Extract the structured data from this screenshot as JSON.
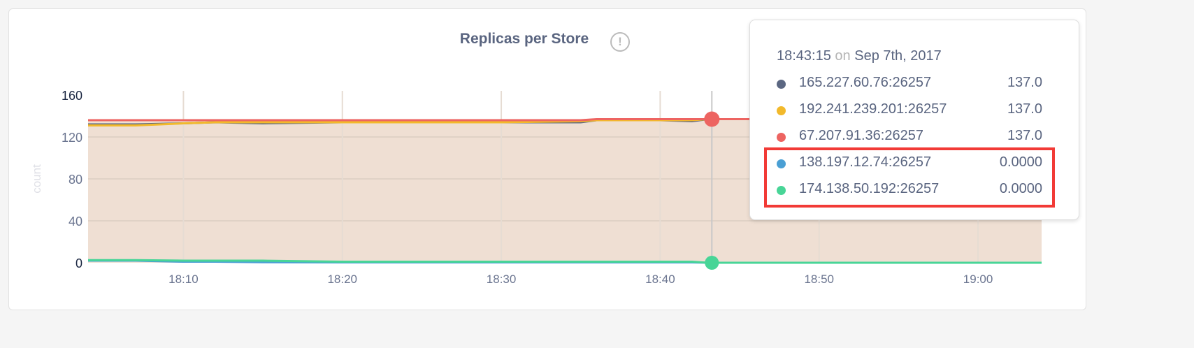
{
  "chart_data": {
    "type": "line",
    "title": "Replicas per Store",
    "ylabel": "count",
    "ylim": [
      0,
      160
    ],
    "yticks": [
      "0",
      "40",
      "80",
      "120",
      "160"
    ],
    "xlim": [
      "18:04",
      "19:04"
    ],
    "xticks": [
      "18:10",
      "18:20",
      "18:30",
      "18:40",
      "18:50",
      "19:00"
    ],
    "grid": true,
    "area_fill": "#efdfd3",
    "x": [
      "18:04",
      "18:07",
      "18:10",
      "18:12",
      "18:15",
      "18:20",
      "18:30",
      "18:35",
      "18:36",
      "18:40",
      "18:42",
      "18:43",
      "18:50",
      "19:00",
      "19:04"
    ],
    "series": [
      {
        "name": "165.227.60.76:26257",
        "color": "#5b6782",
        "values": [
          132,
          132,
          133,
          134,
          133,
          134,
          134,
          134,
          136,
          136,
          135,
          137,
          137,
          137,
          137
        ]
      },
      {
        "name": "192.241.239.201:26257",
        "color": "#f2b92b",
        "values": [
          131,
          131,
          133,
          134,
          134,
          134,
          134,
          135,
          136,
          136,
          136,
          137,
          137,
          137,
          137
        ]
      },
      {
        "name": "67.207.91.36:26257",
        "color": "#ed6461",
        "values": [
          136,
          136,
          136,
          136,
          136,
          136,
          136,
          136,
          137,
          137,
          137,
          137,
          137,
          137,
          137
        ]
      },
      {
        "name": "138.197.12.74:26257",
        "color": "#4a9fd4",
        "values": [
          2,
          2,
          1,
          1,
          0.5,
          0.3,
          0.3,
          0.3,
          0.3,
          0.3,
          0.3,
          0,
          0,
          0,
          0
        ]
      },
      {
        "name": "174.138.50.192:26257",
        "color": "#48d597",
        "values": [
          2.5,
          2.5,
          2,
          2,
          2,
          1,
          1,
          1,
          1,
          1,
          1,
          0,
          0,
          0,
          0
        ]
      }
    ],
    "hover": {
      "x": "18:43:15"
    }
  },
  "info_icon": "exclamation-circle-icon",
  "tooltip": {
    "time": "18:43:15",
    "on": "on",
    "date": "Sep 7th, 2017",
    "rows": [
      {
        "label": "165.227.60.76:26257",
        "value": "137.0",
        "color": "#5b6782"
      },
      {
        "label": "192.241.239.201:26257",
        "value": "137.0",
        "color": "#f2b92b"
      },
      {
        "label": "67.207.91.36:26257",
        "value": "137.0",
        "color": "#ed6461"
      },
      {
        "label": "138.197.12.74:26257",
        "value": "0.0000",
        "color": "#4a9fd4"
      },
      {
        "label": "174.138.50.192:26257",
        "value": "0.0000",
        "color": "#48d597"
      }
    ],
    "highlight_color": "#f23a36"
  }
}
